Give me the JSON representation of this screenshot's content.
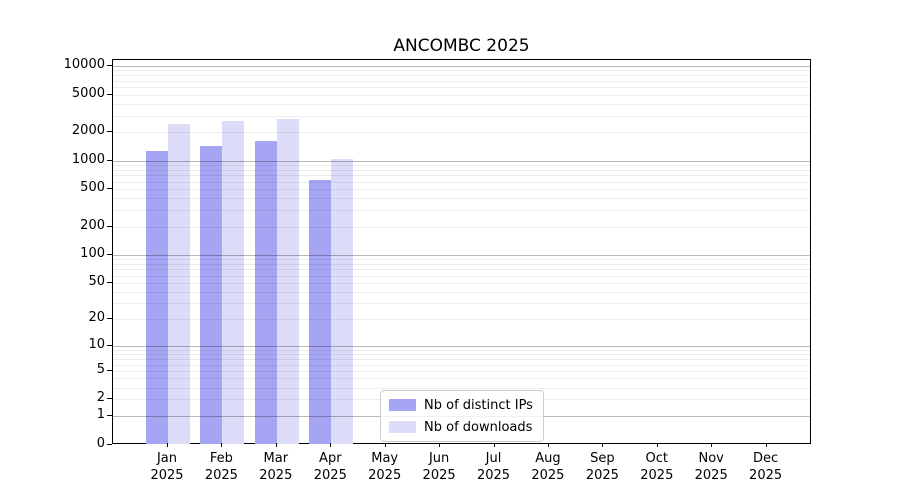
{
  "title": "ANCOMBC 2025",
  "chart_data": {
    "type": "bar",
    "title": "ANCOMBC 2025",
    "categories": [
      "Jan 2025",
      "Feb 2025",
      "Mar 2025",
      "Apr 2025",
      "May 2025",
      "Jun 2025",
      "Jul 2025",
      "Aug 2025",
      "Sep 2025",
      "Oct 2025",
      "Nov 2025",
      "Dec 2025"
    ],
    "series": [
      {
        "name": "Nb of distinct IPs",
        "color": "#a5a5f3",
        "values": [
          1250,
          1430,
          1620,
          620,
          null,
          null,
          null,
          null,
          null,
          null,
          null,
          null
        ]
      },
      {
        "name": "Nb of downloads",
        "color": "#dcdcf9",
        "values": [
          2450,
          2600,
          2750,
          1050,
          null,
          null,
          null,
          null,
          null,
          null,
          null,
          null
        ]
      }
    ],
    "xlabel": "",
    "ylabel": "",
    "yticks": [
      0,
      1,
      2,
      5,
      10,
      20,
      50,
      100,
      200,
      500,
      1000,
      2000,
      5000,
      10000
    ],
    "y_scale": "log10(1+value)",
    "ylim": [
      0,
      11000
    ],
    "grid": "horizontal, minor + major (darker at powers of 10), drawn over bars",
    "legend_position": "inside plot, lower center-left",
    "colors": {
      "bar_distinct_ips": "#a5a5f3",
      "bar_downloads": "#dcdcf9",
      "grid_major": "#b8b8b8",
      "grid_minor": "#ededed",
      "axis_frame": "#000000",
      "legend_border": "#cccccc"
    }
  }
}
